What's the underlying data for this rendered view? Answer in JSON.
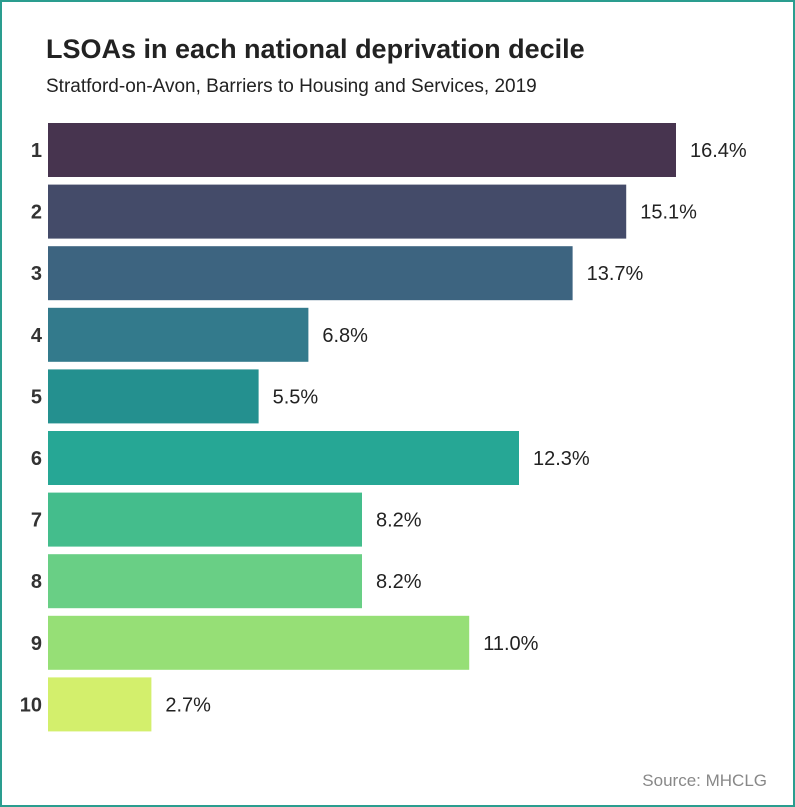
{
  "title": "LSOAs in each national deprivation decile",
  "subtitle": "Stratford-on-Avon, Barriers to Housing and Services, 2019",
  "source": "Source: MHCLG",
  "colors": {
    "frame": "#2a9d8f",
    "bars": [
      "#47344f",
      "#444b69",
      "#3d6480",
      "#337a8c",
      "#24908f",
      "#26a795",
      "#44bd8c",
      "#69cf85",
      "#96df76",
      "#d3ef6c"
    ]
  },
  "chart_data": {
    "type": "bar",
    "orientation": "horizontal",
    "categories": [
      "1",
      "2",
      "3",
      "4",
      "5",
      "6",
      "7",
      "8",
      "9",
      "10"
    ],
    "values": [
      16.4,
      15.1,
      13.7,
      6.8,
      5.5,
      12.3,
      8.2,
      8.2,
      11.0,
      2.7
    ],
    "value_labels": [
      "16.4%",
      "15.1%",
      "13.7%",
      "6.8%",
      "5.5%",
      "12.3%",
      "8.2%",
      "8.2%",
      "11.0%",
      "2.7%"
    ],
    "title": "LSOAs in each national deprivation decile",
    "subtitle": "Stratford-on-Avon, Barriers to Housing and Services, 2019",
    "xlim": [
      0,
      16.4
    ],
    "grid": false,
    "legend": "none"
  }
}
